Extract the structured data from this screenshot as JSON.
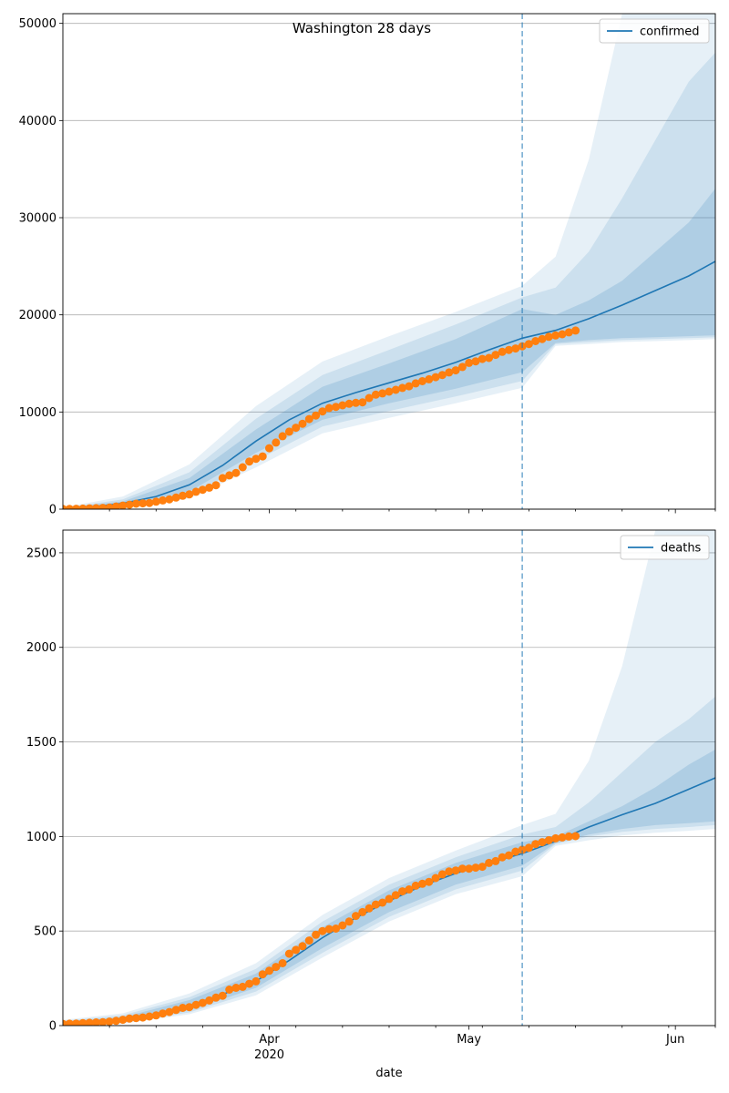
{
  "figure_title": "Washington 28 days",
  "xlabel": "date",
  "x_ticks": [
    {
      "date": "2020-04-01",
      "label": "Apr",
      "sublabel": "2020"
    },
    {
      "date": "2020-05-01",
      "label": "May",
      "sublabel": ""
    },
    {
      "date": "2020-06-01",
      "label": "Jun",
      "sublabel": ""
    }
  ],
  "x_minor_ticks": [
    "2020-03-08",
    "2020-03-15",
    "2020-03-22",
    "2020-03-29",
    "2020-04-05",
    "2020-04-12",
    "2020-04-19",
    "2020-04-26",
    "2020-05-03",
    "2020-05-10",
    "2020-05-17",
    "2020-05-24",
    "2020-05-31",
    "2020-06-07"
  ],
  "colors": {
    "model": "#1f77b4",
    "observed": "#ff7f0e",
    "band": "#1f77b4",
    "grid": "#b0b0b0"
  },
  "chart_data": [
    {
      "type": "line",
      "name": "confirmed",
      "legend": "confirmed",
      "legend_position": "top-right",
      "grid": "y",
      "xlim": [
        "2020-03-01",
        "2020-06-07"
      ],
      "ylim": [
        0,
        51000
      ],
      "y_ticks": [
        0,
        10000,
        20000,
        30000,
        40000,
        50000
      ],
      "forecast_start": "2020-05-09",
      "model_line": {
        "x": [
          "2020-03-01",
          "2020-03-05",
          "2020-03-10",
          "2020-03-15",
          "2020-03-20",
          "2020-03-25",
          "2020-03-30",
          "2020-04-04",
          "2020-04-09",
          "2020-04-14",
          "2020-04-19",
          "2020-04-24",
          "2020-04-29",
          "2020-05-04",
          "2020-05-09",
          "2020-05-14",
          "2020-05-19",
          "2020-05-24",
          "2020-05-29",
          "2020-06-03",
          "2020-06-07"
        ],
        "y": [
          40,
          200,
          600,
          1300,
          2500,
          4500,
          7000,
          9200,
          10900,
          12000,
          13000,
          14000,
          15100,
          16400,
          17600,
          18400,
          19600,
          21000,
          22500,
          24000,
          25500
        ]
      },
      "bands": [
        {
          "x": [
            "2020-03-01",
            "2020-03-10",
            "2020-03-20",
            "2020-03-30",
            "2020-04-09",
            "2020-04-19",
            "2020-04-29",
            "2020-05-09",
            "2020-05-14",
            "2020-05-19",
            "2020-05-24",
            "2020-05-29",
            "2020-06-03",
            "2020-06-07"
          ],
          "lower": [
            0,
            400,
            1800,
            5800,
            9200,
            10900,
            12400,
            14100,
            17100,
            17400,
            17600,
            17700,
            17800,
            17900
          ],
          "upper": [
            80,
            800,
            3200,
            8200,
            12600,
            15000,
            17500,
            20600,
            20000,
            21500,
            23500,
            26500,
            29500,
            33000
          ]
        },
        {
          "x": [
            "2020-03-01",
            "2020-03-10",
            "2020-03-20",
            "2020-03-30",
            "2020-04-09",
            "2020-04-19",
            "2020-04-29",
            "2020-05-09",
            "2020-05-14",
            "2020-05-19",
            "2020-05-24",
            "2020-05-29",
            "2020-06-03",
            "2020-06-07"
          ],
          "lower": [
            0,
            250,
            1400,
            5000,
            8500,
            10100,
            11600,
            13200,
            17000,
            17200,
            17400,
            17500,
            17600,
            17700
          ],
          "upper": [
            120,
            1000,
            3800,
            9300,
            13800,
            16400,
            19000,
            21800,
            22800,
            26500,
            32000,
            38000,
            44000,
            47000
          ]
        },
        {
          "x": [
            "2020-03-01",
            "2020-03-10",
            "2020-03-20",
            "2020-03-30",
            "2020-04-09",
            "2020-04-19",
            "2020-04-29",
            "2020-05-09",
            "2020-05-14",
            "2020-05-19",
            "2020-05-24",
            "2020-05-29",
            "2020-06-03",
            "2020-06-07"
          ],
          "lower": [
            0,
            150,
            1100,
            4300,
            7800,
            9400,
            10900,
            12500,
            16800,
            17000,
            17200,
            17300,
            17400,
            17500
          ],
          "upper": [
            180,
            1300,
            4600,
            10600,
            15200,
            17800,
            20300,
            23000,
            26000,
            36000,
            51000,
            51000,
            51000,
            51000
          ]
        }
      ],
      "observed": {
        "x": [
          "2020-03-01",
          "2020-03-02",
          "2020-03-03",
          "2020-03-04",
          "2020-03-05",
          "2020-03-06",
          "2020-03-07",
          "2020-03-08",
          "2020-03-09",
          "2020-03-10",
          "2020-03-11",
          "2020-03-12",
          "2020-03-13",
          "2020-03-14",
          "2020-03-15",
          "2020-03-16",
          "2020-03-17",
          "2020-03-18",
          "2020-03-19",
          "2020-03-20",
          "2020-03-21",
          "2020-03-22",
          "2020-03-23",
          "2020-03-24",
          "2020-03-25",
          "2020-03-26",
          "2020-03-27",
          "2020-03-28",
          "2020-03-29",
          "2020-03-30",
          "2020-03-31",
          "2020-04-01",
          "2020-04-02",
          "2020-04-03",
          "2020-04-04",
          "2020-04-05",
          "2020-04-06",
          "2020-04-07",
          "2020-04-08",
          "2020-04-09",
          "2020-04-10",
          "2020-04-11",
          "2020-04-12",
          "2020-04-13",
          "2020-04-14",
          "2020-04-15",
          "2020-04-16",
          "2020-04-17",
          "2020-04-18",
          "2020-04-19",
          "2020-04-20",
          "2020-04-21",
          "2020-04-22",
          "2020-04-23",
          "2020-04-24",
          "2020-04-25",
          "2020-04-26",
          "2020-04-27",
          "2020-04-28",
          "2020-04-29",
          "2020-04-30",
          "2020-05-01",
          "2020-05-02",
          "2020-05-03",
          "2020-05-04",
          "2020-05-05",
          "2020-05-06",
          "2020-05-07",
          "2020-05-08",
          "2020-05-09",
          "2020-05-10",
          "2020-05-11",
          "2020-05-12",
          "2020-05-13",
          "2020-05-14",
          "2020-05-15",
          "2020-05-16",
          "2020-05-17"
        ],
        "y": [
          20,
          30,
          40,
          60,
          80,
          100,
          130,
          160,
          270,
          370,
          460,
          560,
          600,
          640,
          770,
          900,
          1010,
          1190,
          1380,
          1520,
          1790,
          2000,
          2210,
          2470,
          3200,
          3480,
          3730,
          4310,
          4900,
          5180,
          5430,
          6270,
          6850,
          7510,
          7980,
          8380,
          8790,
          9270,
          9640,
          10060,
          10410,
          10530,
          10690,
          10850,
          10940,
          11000,
          11440,
          11780,
          11920,
          12090,
          12280,
          12480,
          12650,
          12950,
          13170,
          13370,
          13580,
          13810,
          14070,
          14290,
          14630,
          15060,
          15220,
          15460,
          15560,
          15880,
          16190,
          16390,
          16540,
          16760,
          17000,
          17300,
          17510,
          17740,
          17880,
          18000,
          18200,
          18380
        ]
      }
    },
    {
      "type": "line",
      "name": "deaths",
      "legend": "deaths",
      "legend_position": "top-right",
      "grid": "y",
      "xlim": [
        "2020-03-01",
        "2020-06-07"
      ],
      "ylim": [
        0,
        2620
      ],
      "y_ticks": [
        0,
        500,
        1000,
        1500,
        2000,
        2500
      ],
      "forecast_start": "2020-05-09",
      "model_line": {
        "x": [
          "2020-03-01",
          "2020-03-05",
          "2020-03-10",
          "2020-03-15",
          "2020-03-20",
          "2020-03-25",
          "2020-03-30",
          "2020-04-04",
          "2020-04-09",
          "2020-04-14",
          "2020-04-19",
          "2020-04-24",
          "2020-04-29",
          "2020-05-04",
          "2020-05-09",
          "2020-05-14",
          "2020-05-19",
          "2020-05-24",
          "2020-05-29",
          "2020-06-03",
          "2020-06-07"
        ],
        "y": [
          10,
          18,
          32,
          60,
          105,
          165,
          235,
          345,
          465,
          570,
          660,
          740,
          805,
          860,
          910,
          975,
          1050,
          1115,
          1175,
          1250,
          1310
        ]
      },
      "bands": [
        {
          "x": [
            "2020-03-01",
            "2020-03-10",
            "2020-03-20",
            "2020-03-30",
            "2020-04-09",
            "2020-04-19",
            "2020-04-29",
            "2020-05-09",
            "2020-05-14",
            "2020-05-19",
            "2020-05-24",
            "2020-05-29",
            "2020-06-03",
            "2020-06-07"
          ],
          "lower": [
            0,
            20,
            80,
            200,
            410,
            600,
            745,
            845,
            965,
            1010,
            1040,
            1060,
            1070,
            1080
          ],
          "upper": [
            20,
            45,
            135,
            275,
            520,
            715,
            860,
            970,
            1000,
            1080,
            1160,
            1260,
            1380,
            1460
          ]
        },
        {
          "x": [
            "2020-03-01",
            "2020-03-10",
            "2020-03-20",
            "2020-03-30",
            "2020-04-09",
            "2020-04-19",
            "2020-04-29",
            "2020-05-09",
            "2020-05-14",
            "2020-05-19",
            "2020-05-24",
            "2020-05-29",
            "2020-06-03",
            "2020-06-07"
          ],
          "lower": [
            0,
            15,
            70,
            180,
            385,
            575,
            720,
            820,
            960,
            1000,
            1025,
            1040,
            1050,
            1060
          ],
          "upper": [
            25,
            55,
            150,
            300,
            550,
            745,
            890,
            1010,
            1050,
            1180,
            1340,
            1500,
            1620,
            1740
          ]
        },
        {
          "x": [
            "2020-03-01",
            "2020-03-10",
            "2020-03-20",
            "2020-03-30",
            "2020-04-09",
            "2020-04-19",
            "2020-04-29",
            "2020-05-09",
            "2020-05-14",
            "2020-05-19",
            "2020-05-24",
            "2020-05-29",
            "2020-06-03",
            "2020-06-07"
          ],
          "lower": [
            0,
            10,
            60,
            160,
            360,
            550,
            695,
            790,
            950,
            980,
            1005,
            1020,
            1030,
            1040
          ],
          "upper": [
            30,
            65,
            170,
            330,
            585,
            780,
            925,
            1060,
            1120,
            1400,
            1900,
            2620,
            2620,
            2620
          ]
        }
      ],
      "observed": {
        "x": [
          "2020-03-01",
          "2020-03-02",
          "2020-03-03",
          "2020-03-04",
          "2020-03-05",
          "2020-03-06",
          "2020-03-07",
          "2020-03-08",
          "2020-03-09",
          "2020-03-10",
          "2020-03-11",
          "2020-03-12",
          "2020-03-13",
          "2020-03-14",
          "2020-03-15",
          "2020-03-16",
          "2020-03-17",
          "2020-03-18",
          "2020-03-19",
          "2020-03-20",
          "2020-03-21",
          "2020-03-22",
          "2020-03-23",
          "2020-03-24",
          "2020-03-25",
          "2020-03-26",
          "2020-03-27",
          "2020-03-28",
          "2020-03-29",
          "2020-03-30",
          "2020-03-31",
          "2020-04-01",
          "2020-04-02",
          "2020-04-03",
          "2020-04-04",
          "2020-04-05",
          "2020-04-06",
          "2020-04-07",
          "2020-04-08",
          "2020-04-09",
          "2020-04-10",
          "2020-04-11",
          "2020-04-12",
          "2020-04-13",
          "2020-04-14",
          "2020-04-15",
          "2020-04-16",
          "2020-04-17",
          "2020-04-18",
          "2020-04-19",
          "2020-04-20",
          "2020-04-21",
          "2020-04-22",
          "2020-04-23",
          "2020-04-24",
          "2020-04-25",
          "2020-04-26",
          "2020-04-27",
          "2020-04-28",
          "2020-04-29",
          "2020-04-30",
          "2020-05-01",
          "2020-05-02",
          "2020-05-03",
          "2020-05-04",
          "2020-05-05",
          "2020-05-06",
          "2020-05-07",
          "2020-05-08",
          "2020-05-09",
          "2020-05-10",
          "2020-05-11",
          "2020-05-12",
          "2020-05-13",
          "2020-05-14",
          "2020-05-15",
          "2020-05-16",
          "2020-05-17"
        ],
        "y": [
          9,
          10,
          11,
          13,
          15,
          17,
          18,
          21,
          25,
          31,
          37,
          40,
          43,
          48,
          54,
          64,
          72,
          83,
          94,
          98,
          110,
          120,
          133,
          148,
          158,
          190,
          200,
          205,
          221,
          234,
          271,
          290,
          310,
          330,
          380,
          400,
          420,
          450,
          480,
          500,
          510,
          513,
          530,
          550,
          580,
          600,
          620,
          640,
          650,
          670,
          690,
          710,
          720,
          740,
          750,
          760,
          780,
          800,
          815,
          820,
          830,
          830,
          835,
          840,
          860,
          870,
          890,
          900,
          920,
          930,
          940,
          960,
          970,
          980,
          990,
          995,
          1000,
          1002
        ]
      }
    }
  ]
}
